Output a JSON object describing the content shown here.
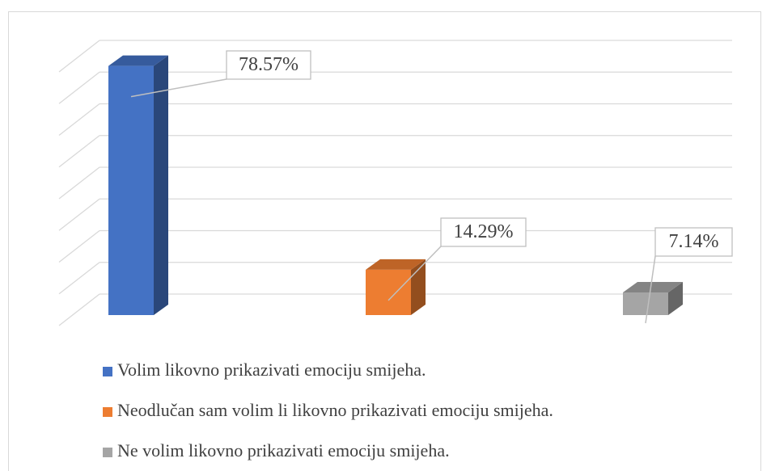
{
  "chart_data": {
    "type": "bar3d",
    "series": [
      {
        "name": "Volim likovno prikazivati emociju smijeha.",
        "color": "#4472c4",
        "values": [
          78.57
        ],
        "value_labels": [
          "78.57%"
        ]
      },
      {
        "name": "Neodlučan sam volim li likovno prikazivati emociju smijeha.",
        "color": "#ed7d31",
        "values": [
          14.29
        ],
        "value_labels": [
          "14.29%"
        ]
      },
      {
        "name": "Ne volim likovno prikazivati emociju smijeha.",
        "color": "#a5a5a5",
        "values": [
          7.14
        ],
        "value_labels": [
          "7.14%"
        ]
      }
    ],
    "ylim": [
      0,
      80
    ],
    "yticks": [
      0,
      10,
      20,
      30,
      40,
      50,
      60,
      70,
      80
    ],
    "grid": true,
    "legend": "bottom"
  }
}
